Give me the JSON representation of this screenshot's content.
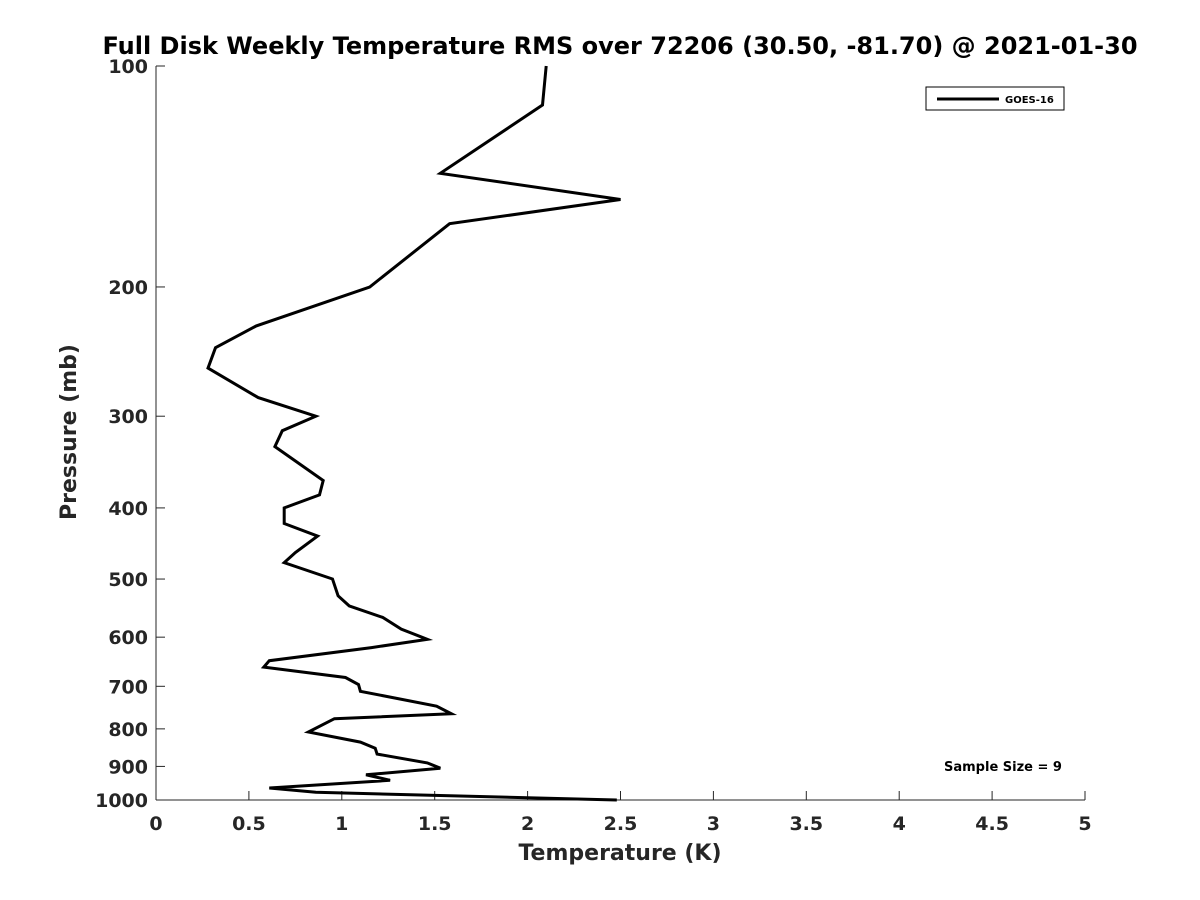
{
  "chart_data": {
    "type": "line",
    "title": "Full Disk Weekly Temperature RMS over 72206 (30.50, -81.70) @ 2021-01-30",
    "xlabel": "Temperature (K)",
    "ylabel": "Pressure (mb)",
    "xlim": [
      0,
      5
    ],
    "ylim": [
      100,
      1000
    ],
    "yscale": "log",
    "y_reversed": true,
    "grid": false,
    "legend_position": "top-right",
    "x_ticks": [
      "0",
      "0.5",
      "1",
      "1.5",
      "2",
      "2.5",
      "3",
      "3.5",
      "4",
      "4.5",
      "5"
    ],
    "y_ticks": [
      "100",
      "200",
      "300",
      "400",
      "500",
      "600",
      "700",
      "800",
      "900",
      "1000"
    ],
    "annotation": "Sample Size = 9",
    "series": [
      {
        "name": "GOES-16",
        "color": "#000000",
        "x": [
          2.1,
          2.08,
          1.53,
          2.5,
          1.58,
          1.15,
          0.54,
          0.32,
          0.28,
          0.55,
          0.86,
          0.68,
          0.64,
          0.9,
          0.88,
          0.69,
          0.69,
          0.87,
          0.75,
          0.69,
          0.95,
          0.98,
          1.04,
          1.22,
          1.32,
          1.46,
          1.16,
          0.61,
          0.58,
          1.02,
          1.09,
          1.1,
          1.51,
          1.59,
          0.96,
          0.82,
          1.1,
          1.18,
          1.19,
          1.46,
          1.53,
          1.13,
          1.26,
          0.61,
          0.86,
          2.48
        ],
        "y": [
          100,
          113,
          140,
          152,
          164,
          200,
          226,
          242,
          258,
          283,
          300,
          314,
          330,
          367,
          384,
          400,
          420,
          437,
          460,
          475,
          500,
          527,
          544,
          564,
          585,
          604,
          620,
          646,
          659,
          681,
          696,
          711,
          745,
          763,
          775,
          808,
          834,
          850,
          866,
          890,
          905,
          924,
          940,
          963,
          976,
          1000
        ]
      }
    ]
  }
}
